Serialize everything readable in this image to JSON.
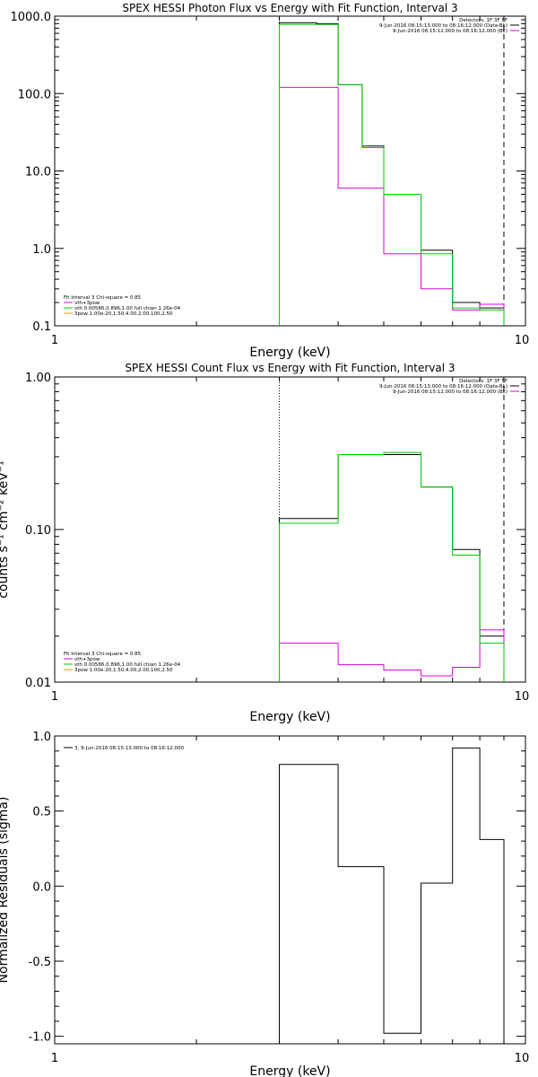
{
  "chart_data": [
    {
      "type": "step",
      "title": "SPEX HESSI Photon Flux vs Energy with Fit Function, Interval 3",
      "xlabel": "Energy (keV)",
      "ylabel": "",
      "xscale": "log",
      "yscale": "log",
      "xlim": [
        1,
        10
      ],
      "ylim": [
        0.1,
        1000
      ],
      "xtick_labels": [
        "1",
        "10"
      ],
      "ytick_labels": [
        "0.1",
        "1.0",
        "10.0",
        "100.0",
        "1000.0"
      ],
      "vline_dotted": 3.0,
      "vline_dashed": 9.0,
      "bin_edges": [
        3.0,
        3.5,
        4.0,
        4.5,
        5.0,
        5.5,
        6.0,
        6.5,
        7.0,
        7.5,
        8.0,
        8.5,
        9.0
      ],
      "header_lines": [
        "Detectors: 1F 3F 5F",
        "9-Jun-2016 08:15:13.000 to 08:16:12.000 (Data-Bk)",
        "9-Jun-2016 08:15:12.000 to 08:16:12.000 (Bk)"
      ],
      "legend_lines": [
        "Fit Interval 3   Chi-square = 0.85",
        "vth+3pow",
        "vth 0.00586,0.896,1.00  full chian 1.26e-04",
        "3pow 1.00e-20,1.50,4.00,2.00,100,2.50"
      ],
      "series": [
        {
          "name": "9-Jun-2016 08:15:13.000 to 08:16:12.000 (Data-Bk)",
          "color": "#000000",
          "x_edges": [
            3.0,
            3.6,
            4.0,
            4.5,
            5.0,
            6.0,
            7.0,
            8.0,
            9.0
          ],
          "values": [
            820,
            800,
            130,
            21,
            5.0,
            0.95,
            0.2,
            0.17
          ]
        },
        {
          "name": "9-Jun-2016 08:15:12.000 to 08:16:12.000 (Bk)",
          "color": "#dd00dd",
          "x_edges": [
            3.0,
            3.6,
            4.0,
            5.0,
            6.0,
            7.0,
            8.0,
            9.0
          ],
          "values": [
            120,
            120,
            6.0,
            0.85,
            0.3,
            0.16,
            0.19
          ]
        },
        {
          "name": "vth+3pow",
          "color": "#00cc00",
          "x_edges": [
            3.0,
            3.6,
            4.0,
            4.5,
            5.0,
            6.0,
            7.0,
            8.0,
            9.0
          ],
          "values": [
            780,
            780,
            130,
            20,
            5.0,
            0.85,
            0.17,
            0.16
          ]
        }
      ]
    },
    {
      "type": "step",
      "title": "SPEX HESSI Count Flux vs Energy with Fit Function, Interval 3",
      "xlabel": "Energy (keV)",
      "ylabel": "counts s⁻¹ cm⁻² keV⁻¹",
      "xscale": "log",
      "yscale": "log",
      "xlim": [
        1,
        10
      ],
      "ylim": [
        0.01,
        1.0
      ],
      "xtick_labels": [
        "1",
        "10"
      ],
      "ytick_labels": [
        "0.01",
        "0.10",
        "1.00"
      ],
      "vline_dotted": 3.0,
      "vline_dashed": 9.0,
      "header_lines": [
        "Detectors: 1F 3F 5F",
        "9-Jun-2016 08:15:13.000 to 08:16:12.000 (Data-Bk)",
        "9-Jun-2016 08:15:12.000 to 08:16:12.000 (Bk)"
      ],
      "legend_lines": [
        "Fit Interval 3   Chi-square = 0.85",
        "vth+3pow",
        "vth 0.00586,0.896,1.00  full chian 1.26e-04",
        "3pow 1.00e-20,1.50,4.00,2.00,100,2.50"
      ],
      "series": [
        {
          "name": "9-Jun-2016 08:15:13.000 to 08:16:12.000 (Data-Bk)",
          "color": "#000000",
          "x_edges": [
            3.0,
            4.0,
            5.0,
            6.0,
            7.0,
            8.0,
            9.0
          ],
          "values": [
            0.118,
            0.31,
            0.31,
            0.19,
            0.074,
            0.02
          ]
        },
        {
          "name": "9-Jun-2016 08:15:12.000 to 08:16:12.000 (Bk)",
          "color": "#dd00dd",
          "x_edges": [
            3.0,
            4.0,
            5.0,
            6.0,
            7.0,
            8.0,
            9.0
          ],
          "values": [
            0.018,
            0.013,
            0.012,
            0.011,
            0.0125,
            0.022
          ]
        },
        {
          "name": "vth+3pow",
          "color": "#00cc00",
          "x_edges": [
            3.0,
            4.0,
            5.0,
            6.0,
            7.0,
            8.0,
            9.0
          ],
          "values": [
            0.11,
            0.31,
            0.32,
            0.19,
            0.068,
            0.018
          ]
        }
      ]
    },
    {
      "type": "step",
      "title": "",
      "xlabel": "Energy (keV)",
      "ylabel": "Normalized Residuals (sigma)",
      "xscale": "log",
      "yscale": "linear",
      "xlim": [
        1,
        10
      ],
      "ylim": [
        -1.05,
        1.0
      ],
      "xtick_labels": [
        "1",
        "10"
      ],
      "ytick_labels": [
        "-1.0",
        "-0.5",
        "0.0",
        "0.5",
        "1.0"
      ],
      "legend_lines": [
        "3,  9-Jun-2016 08:15:13.000 to 08:16:12.000"
      ],
      "series": [
        {
          "name": "3,  9-Jun-2016 08:15:13.000 to 08:16:12.000",
          "color": "#000000",
          "x_edges": [
            3.0,
            4.0,
            5.0,
            6.0,
            7.0,
            8.0,
            9.0
          ],
          "values": [
            0.81,
            0.13,
            -0.98,
            0.02,
            0.92,
            0.31
          ]
        }
      ]
    }
  ]
}
